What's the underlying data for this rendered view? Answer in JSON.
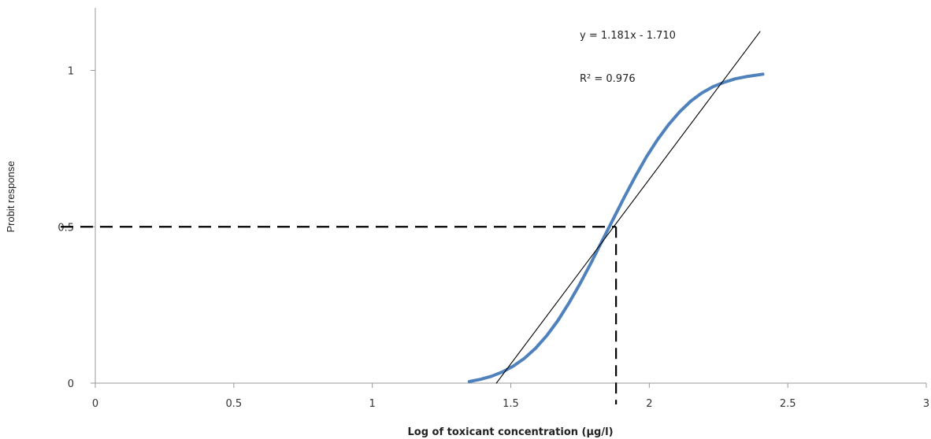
{
  "chart_data": {
    "type": "line",
    "title": "",
    "xlabel": "Log of toxicant concentration (µg/l)",
    "ylabel": "Probit response",
    "xlim": [
      0,
      3
    ],
    "ylim": [
      0,
      1.2
    ],
    "x_ticks": [
      0,
      0.5,
      1,
      1.5,
      2,
      2.5,
      3
    ],
    "x_tick_labels": [
      "0",
      "0.5",
      "1",
      "1.5",
      "2",
      "2.5",
      "3"
    ],
    "y_ticks": [
      0,
      0.5,
      1
    ],
    "y_tick_labels": [
      "0",
      "0.5",
      "1"
    ],
    "grid": false,
    "series": [
      {
        "color": "#4F81BD",
        "x": [
          1.35,
          1.39,
          1.43,
          1.47,
          1.51,
          1.55,
          1.59,
          1.63,
          1.67,
          1.71,
          1.75,
          1.79,
          1.83,
          1.87,
          1.91,
          1.95,
          1.99,
          2.03,
          2.07,
          2.11,
          2.15,
          2.19,
          2.23,
          2.27,
          2.31,
          2.35,
          2.41
        ],
        "values": [
          0.005,
          0.012,
          0.022,
          0.036,
          0.055,
          0.08,
          0.112,
          0.152,
          0.2,
          0.256,
          0.318,
          0.385,
          0.455,
          0.525,
          0.595,
          0.662,
          0.724,
          0.779,
          0.827,
          0.868,
          0.902,
          0.928,
          0.948,
          0.962,
          0.973,
          0.98,
          0.988
        ]
      },
      {
        "color": "#000000",
        "x": [
          1.448,
          2.4
        ],
        "values": [
          0.0,
          1.1244
        ]
      }
    ],
    "trendline": {
      "equation_label": "y = 1.181x - 1.710",
      "r2_label": "R² = 0.976"
    },
    "reference_point": {
      "x": 1.88,
      "y": 0.5
    }
  }
}
